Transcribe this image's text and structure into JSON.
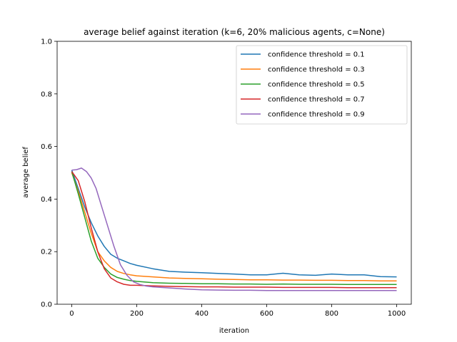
{
  "chart_data": {
    "type": "line",
    "title": "average belief against iteration (k=6, 20% malicious agents, c=None)",
    "xlabel": "iteration",
    "ylabel": "average belief",
    "xlim": [
      -45,
      1045
    ],
    "ylim": [
      0.0,
      1.0
    ],
    "xticks": [
      "0",
      "200",
      "400",
      "600",
      "800",
      "1000"
    ],
    "yticks": [
      "0.0",
      "0.2",
      "0.4",
      "0.6",
      "0.8",
      "1.0"
    ],
    "grid": false,
    "legend_position": "upper right",
    "series": [
      {
        "name": "confidence threshold = 0.1",
        "color": "#1f77b4",
        "x": [
          0,
          20,
          40,
          60,
          80,
          100,
          120,
          140,
          160,
          180,
          200,
          250,
          300,
          350,
          400,
          450,
          500,
          550,
          600,
          650,
          700,
          750,
          800,
          850,
          900,
          950,
          1000
        ],
        "y": [
          0.51,
          0.44,
          0.37,
          0.31,
          0.26,
          0.22,
          0.19,
          0.175,
          0.165,
          0.155,
          0.148,
          0.135,
          0.125,
          0.122,
          0.12,
          0.117,
          0.115,
          0.112,
          0.112,
          0.118,
          0.112,
          0.11,
          0.115,
          0.112,
          0.112,
          0.105,
          0.104
        ]
      },
      {
        "name": "confidence threshold = 0.3",
        "color": "#ff7f0e",
        "x": [
          0,
          20,
          40,
          60,
          80,
          100,
          120,
          140,
          160,
          180,
          200,
          250,
          300,
          350,
          400,
          450,
          500,
          550,
          600,
          650,
          700,
          750,
          800,
          850,
          900,
          950,
          1000
        ],
        "y": [
          0.5,
          0.43,
          0.35,
          0.27,
          0.2,
          0.165,
          0.14,
          0.125,
          0.117,
          0.112,
          0.108,
          0.104,
          0.1,
          0.098,
          0.097,
          0.095,
          0.094,
          0.093,
          0.093,
          0.092,
          0.092,
          0.091,
          0.091,
          0.09,
          0.09,
          0.089,
          0.089
        ]
      },
      {
        "name": "confidence threshold = 0.5",
        "color": "#2ca02c",
        "x": [
          0,
          20,
          40,
          60,
          80,
          100,
          120,
          140,
          160,
          180,
          200,
          250,
          300,
          350,
          400,
          450,
          500,
          550,
          600,
          650,
          700,
          750,
          800,
          850,
          900,
          950,
          1000
        ],
        "y": [
          0.505,
          0.42,
          0.33,
          0.24,
          0.175,
          0.14,
          0.115,
          0.102,
          0.095,
          0.09,
          0.087,
          0.082,
          0.08,
          0.079,
          0.078,
          0.078,
          0.077,
          0.077,
          0.076,
          0.077,
          0.076,
          0.076,
          0.076,
          0.075,
          0.075,
          0.075,
          0.075
        ]
      },
      {
        "name": "confidence threshold = 0.7",
        "color": "#d62728",
        "x": [
          0,
          20,
          40,
          60,
          80,
          100,
          120,
          140,
          160,
          180,
          200,
          250,
          300,
          350,
          400,
          450,
          500,
          550,
          600,
          650,
          700,
          750,
          800,
          850,
          900,
          950,
          1000
        ],
        "y": [
          0.505,
          0.47,
          0.39,
          0.29,
          0.2,
          0.135,
          0.1,
          0.085,
          0.076,
          0.072,
          0.072,
          0.07,
          0.068,
          0.067,
          0.066,
          0.066,
          0.065,
          0.065,
          0.065,
          0.064,
          0.064,
          0.064,
          0.064,
          0.063,
          0.063,
          0.063,
          0.063
        ]
      },
      {
        "name": "confidence threshold = 0.9",
        "color": "#9467bd",
        "x": [
          0,
          15,
          30,
          45,
          60,
          75,
          90,
          110,
          130,
          150,
          170,
          190,
          210,
          230,
          250,
          300,
          350,
          400,
          450,
          500,
          550,
          600,
          650,
          700,
          750,
          800,
          850,
          900,
          950,
          1000
        ],
        "y": [
          0.51,
          0.512,
          0.518,
          0.505,
          0.48,
          0.44,
          0.38,
          0.3,
          0.22,
          0.15,
          0.11,
          0.085,
          0.075,
          0.069,
          0.066,
          0.062,
          0.058,
          0.055,
          0.054,
          0.053,
          0.053,
          0.052,
          0.052,
          0.052,
          0.052,
          0.052,
          0.052,
          0.052,
          0.052,
          0.052
        ]
      }
    ]
  }
}
